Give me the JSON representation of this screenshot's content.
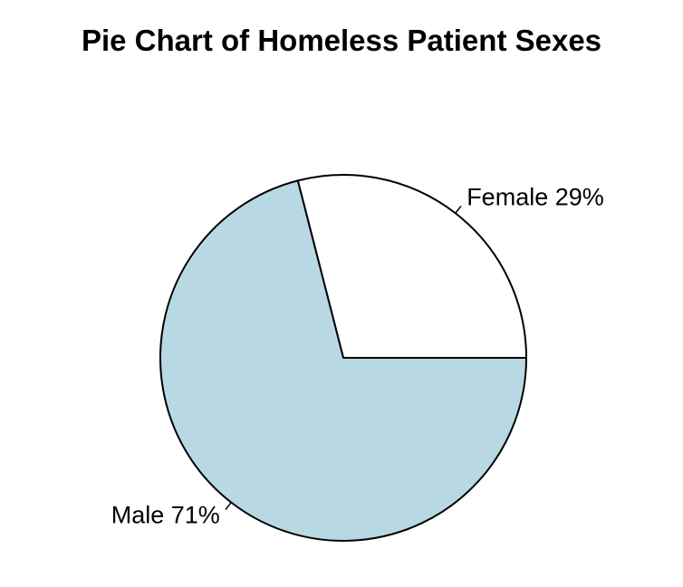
{
  "chart_data": {
    "type": "pie",
    "title": "Pie Chart of Homeless Patient Sexes",
    "start_angle_deg": 0,
    "direction": "counterclockwise",
    "slices": [
      {
        "label": "Female 29%",
        "category": "Female",
        "value": 29,
        "color": "#ffffff"
      },
      {
        "label": "Male 71%",
        "category": "Male",
        "value": 71,
        "color": "#b8d9e4"
      }
    ],
    "edge_color": "#000000",
    "legend": "none"
  }
}
